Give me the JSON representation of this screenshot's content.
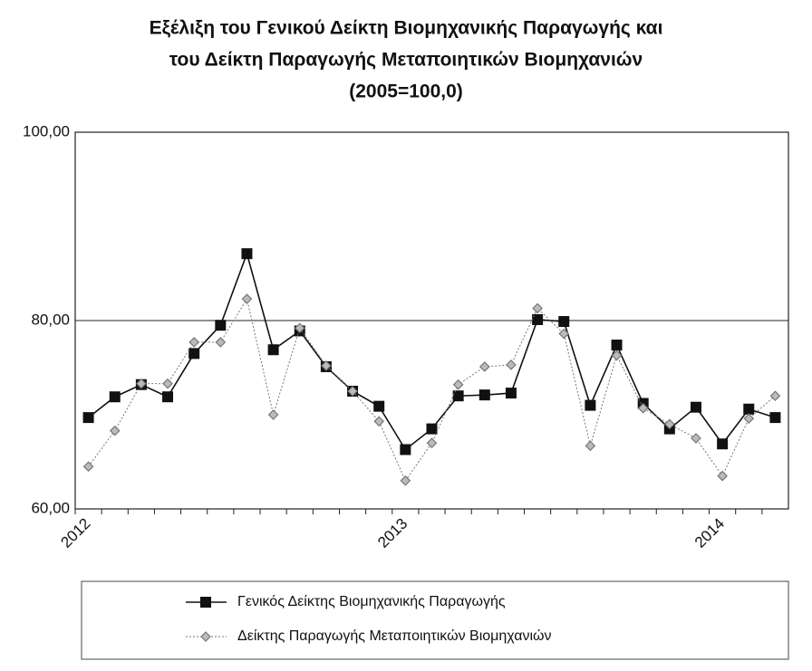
{
  "chart_data": {
    "type": "line",
    "title": [
      "Εξέλιξη του Γενικού Δείκτη Βιομηχανικής Παραγωγής και",
      "του Δείκτη Παραγωγής Μεταποιητικών Βιομηχανιών",
      "(2005=100,0)"
    ],
    "categories": [
      "2012",
      null,
      null,
      null,
      null,
      null,
      null,
      null,
      null,
      null,
      null,
      null,
      "2013",
      null,
      null,
      null,
      null,
      null,
      null,
      null,
      null,
      null,
      null,
      null,
      "2014",
      null,
      null
    ],
    "series": [
      {
        "name": "Γενικός Δείκτης Βιομηχανικής Παραγωγής",
        "color": "#111111",
        "marker": "square",
        "values": [
          69.7,
          71.9,
          73.2,
          71.9,
          76.5,
          79.5,
          87.1,
          76.9,
          78.9,
          75.1,
          72.5,
          70.9,
          66.3,
          68.5,
          72.0,
          72.1,
          72.3,
          80.1,
          79.9,
          71.0,
          77.4,
          71.2,
          68.5,
          70.8,
          66.9,
          70.6,
          69.7
        ]
      },
      {
        "name": "Δείκτης Παραγωγής Μεταποιητικών Βιομηχανιών",
        "color": "#777777",
        "marker": "diamond",
        "values": [
          64.5,
          68.3,
          73.3,
          73.3,
          77.7,
          77.7,
          82.3,
          70.0,
          79.2,
          75.2,
          72.5,
          69.3,
          63.0,
          67.0,
          73.2,
          75.1,
          75.3,
          81.3,
          78.6,
          66.7,
          76.3,
          70.7,
          69.0,
          67.5,
          63.5,
          69.6,
          72.0
        ]
      }
    ],
    "ylim": [
      60,
      100
    ],
    "yticks": [
      {
        "value": 60,
        "label": "60,00"
      },
      {
        "value": 80,
        "label": "80,00"
      },
      {
        "value": 100,
        "label": "100,00"
      }
    ],
    "grid": true
  }
}
